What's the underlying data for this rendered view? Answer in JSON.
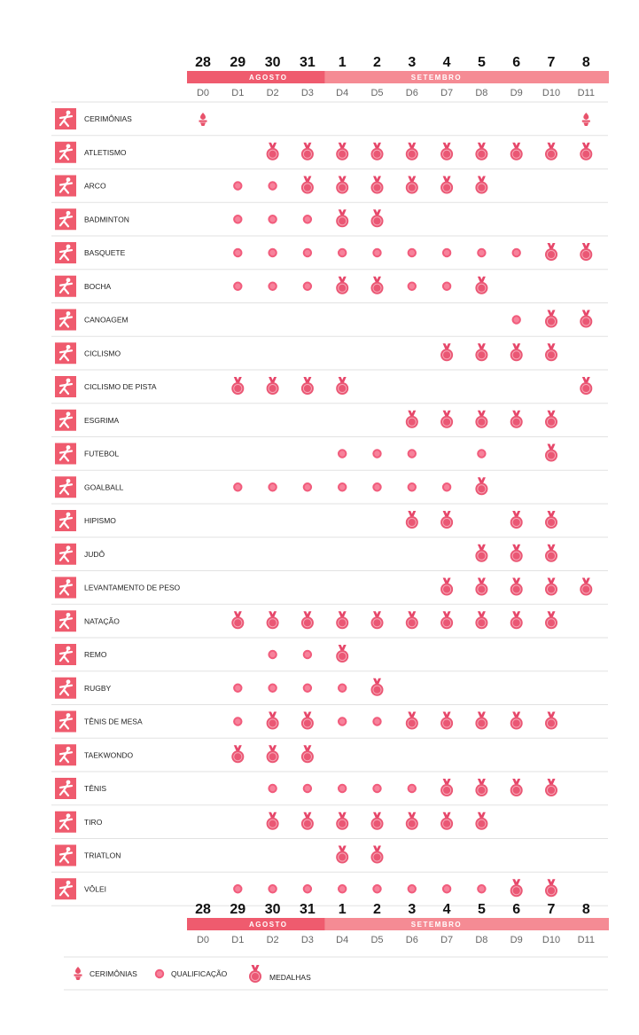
{
  "colors": {
    "accent": "#e8526b",
    "august_band": "#ef5b6e",
    "september_band": "#f58b94",
    "icon_bg": "#ef5b6e",
    "qualification": "#f15c7c",
    "medal": "#ea5774",
    "medal_ribbon": "#e6476a",
    "ceremony": "#e8526b",
    "separator": "#e2e2e2"
  },
  "calendar": {
    "dates": [
      "28",
      "29",
      "30",
      "31",
      "1",
      "2",
      "3",
      "4",
      "5",
      "6",
      "7",
      "8"
    ],
    "day_codes": [
      "D0",
      "D1",
      "D2",
      "D3",
      "D4",
      "D5",
      "D6",
      "D7",
      "D8",
      "D9",
      "D10",
      "D11"
    ],
    "months": [
      {
        "label": "AGOSTO",
        "days": 4
      },
      {
        "label": "SETEMBRO",
        "days": 8
      }
    ]
  },
  "sports": [
    {
      "name": "CERIMÔNIAS",
      "icon": "torch-icon",
      "events": [
        "C",
        "",
        "",
        "",
        "",
        "",
        "",
        "",
        "",
        "",
        "",
        "C"
      ]
    },
    {
      "name": "ATLETISMO",
      "icon": "athletics-icon",
      "events": [
        "",
        "",
        "M",
        "M",
        "M",
        "M",
        "M",
        "M",
        "M",
        "M",
        "M",
        "M"
      ]
    },
    {
      "name": "ARCO",
      "icon": "archery-icon",
      "events": [
        "",
        "Q",
        "Q",
        "M",
        "M",
        "M",
        "M",
        "M",
        "M",
        "",
        "",
        ""
      ]
    },
    {
      "name": "BADMINTON",
      "icon": "badminton-icon",
      "events": [
        "",
        "Q",
        "Q",
        "Q",
        "M",
        "M",
        "",
        "",
        "",
        "",
        "",
        ""
      ]
    },
    {
      "name": "BASQUETE",
      "icon": "basketball-icon",
      "events": [
        "",
        "Q",
        "Q",
        "Q",
        "Q",
        "Q",
        "Q",
        "Q",
        "Q",
        "Q",
        "M",
        "M"
      ]
    },
    {
      "name": "BOCHA",
      "icon": "boccia-icon",
      "events": [
        "",
        "Q",
        "Q",
        "Q",
        "M",
        "M",
        "Q",
        "Q",
        "M",
        "",
        "",
        ""
      ]
    },
    {
      "name": "CANOAGEM",
      "icon": "canoe-icon",
      "events": [
        "",
        "",
        "",
        "",
        "",
        "",
        "",
        "",
        "",
        "Q",
        "M",
        "M"
      ]
    },
    {
      "name": "CICLISMO",
      "icon": "cycling-icon",
      "events": [
        "",
        "",
        "",
        "",
        "",
        "",
        "",
        "M",
        "M",
        "M",
        "M",
        ""
      ]
    },
    {
      "name": "CICLISMO DE PISTA",
      "icon": "track-cycling-icon",
      "events": [
        "",
        "M",
        "M",
        "M",
        "M",
        "",
        "",
        "",
        "",
        "",
        "",
        "M"
      ]
    },
    {
      "name": "ESGRIMA",
      "icon": "fencing-icon",
      "events": [
        "",
        "",
        "",
        "",
        "",
        "",
        "M",
        "M",
        "M",
        "M",
        "M",
        ""
      ]
    },
    {
      "name": "FUTEBOL",
      "icon": "football-icon",
      "events": [
        "",
        "",
        "",
        "",
        "Q",
        "Q",
        "Q",
        "",
        "Q",
        "",
        "M",
        ""
      ]
    },
    {
      "name": "GOALBALL",
      "icon": "goalball-icon",
      "events": [
        "",
        "Q",
        "Q",
        "Q",
        "Q",
        "Q",
        "Q",
        "Q",
        "M",
        "",
        "",
        ""
      ]
    },
    {
      "name": "HIPISMO",
      "icon": "equestrian-icon",
      "events": [
        "",
        "",
        "",
        "",
        "",
        "",
        "M",
        "M",
        "",
        "M",
        "M",
        ""
      ]
    },
    {
      "name": "JUDÔ",
      "icon": "judo-icon",
      "events": [
        "",
        "",
        "",
        "",
        "",
        "",
        "",
        "",
        "M",
        "M",
        "M",
        ""
      ]
    },
    {
      "name": "LEVANTAMENTO DE PESO",
      "icon": "powerlifting-icon",
      "events": [
        "",
        "",
        "",
        "",
        "",
        "",
        "",
        "M",
        "M",
        "M",
        "M",
        "M"
      ]
    },
    {
      "name": "NATAÇÃO",
      "icon": "swimming-icon",
      "events": [
        "",
        "M",
        "M",
        "M",
        "M",
        "M",
        "M",
        "M",
        "M",
        "M",
        "M",
        ""
      ]
    },
    {
      "name": "REMO",
      "icon": "rowing-icon",
      "events": [
        "",
        "",
        "Q",
        "Q",
        "M",
        "",
        "",
        "",
        "",
        "",
        "",
        ""
      ]
    },
    {
      "name": "RUGBY",
      "icon": "rugby-icon",
      "events": [
        "",
        "Q",
        "Q",
        "Q",
        "Q",
        "M",
        "",
        "",
        "",
        "",
        "",
        ""
      ]
    },
    {
      "name": "TÊNIS DE MESA",
      "icon": "table-tennis-icon",
      "events": [
        "",
        "Q",
        "M",
        "M",
        "Q",
        "Q",
        "M",
        "M",
        "M",
        "M",
        "M",
        ""
      ]
    },
    {
      "name": "TAEKWONDO",
      "icon": "taekwondo-icon",
      "events": [
        "",
        "M",
        "M",
        "M",
        "",
        "",
        "",
        "",
        "",
        "",
        "",
        ""
      ]
    },
    {
      "name": "TÊNIS",
      "icon": "tennis-icon",
      "events": [
        "",
        "",
        "Q",
        "Q",
        "Q",
        "Q",
        "Q",
        "M",
        "M",
        "M",
        "M",
        ""
      ]
    },
    {
      "name": "TIRO",
      "icon": "shooting-icon",
      "events": [
        "",
        "",
        "M",
        "M",
        "M",
        "M",
        "M",
        "M",
        "M",
        "",
        "",
        ""
      ]
    },
    {
      "name": "TRIATLON",
      "icon": "triathlon-icon",
      "events": [
        "",
        "",
        "",
        "",
        "M",
        "M",
        "",
        "",
        "",
        "",
        "",
        ""
      ]
    },
    {
      "name": "VÔLEI",
      "icon": "volleyball-icon",
      "events": [
        "",
        "Q",
        "Q",
        "Q",
        "Q",
        "Q",
        "Q",
        "Q",
        "Q",
        "M",
        "M",
        ""
      ]
    }
  ],
  "legend": [
    {
      "symbol": "C",
      "label": "CERIMÔNIAS",
      "icon": "torch-icon"
    },
    {
      "symbol": "Q",
      "label": "QUALIFICAÇÃO",
      "icon": "qualification-dot-icon"
    },
    {
      "symbol": "M",
      "label": "MEDALHAS",
      "icon": "medal-icon"
    }
  ]
}
